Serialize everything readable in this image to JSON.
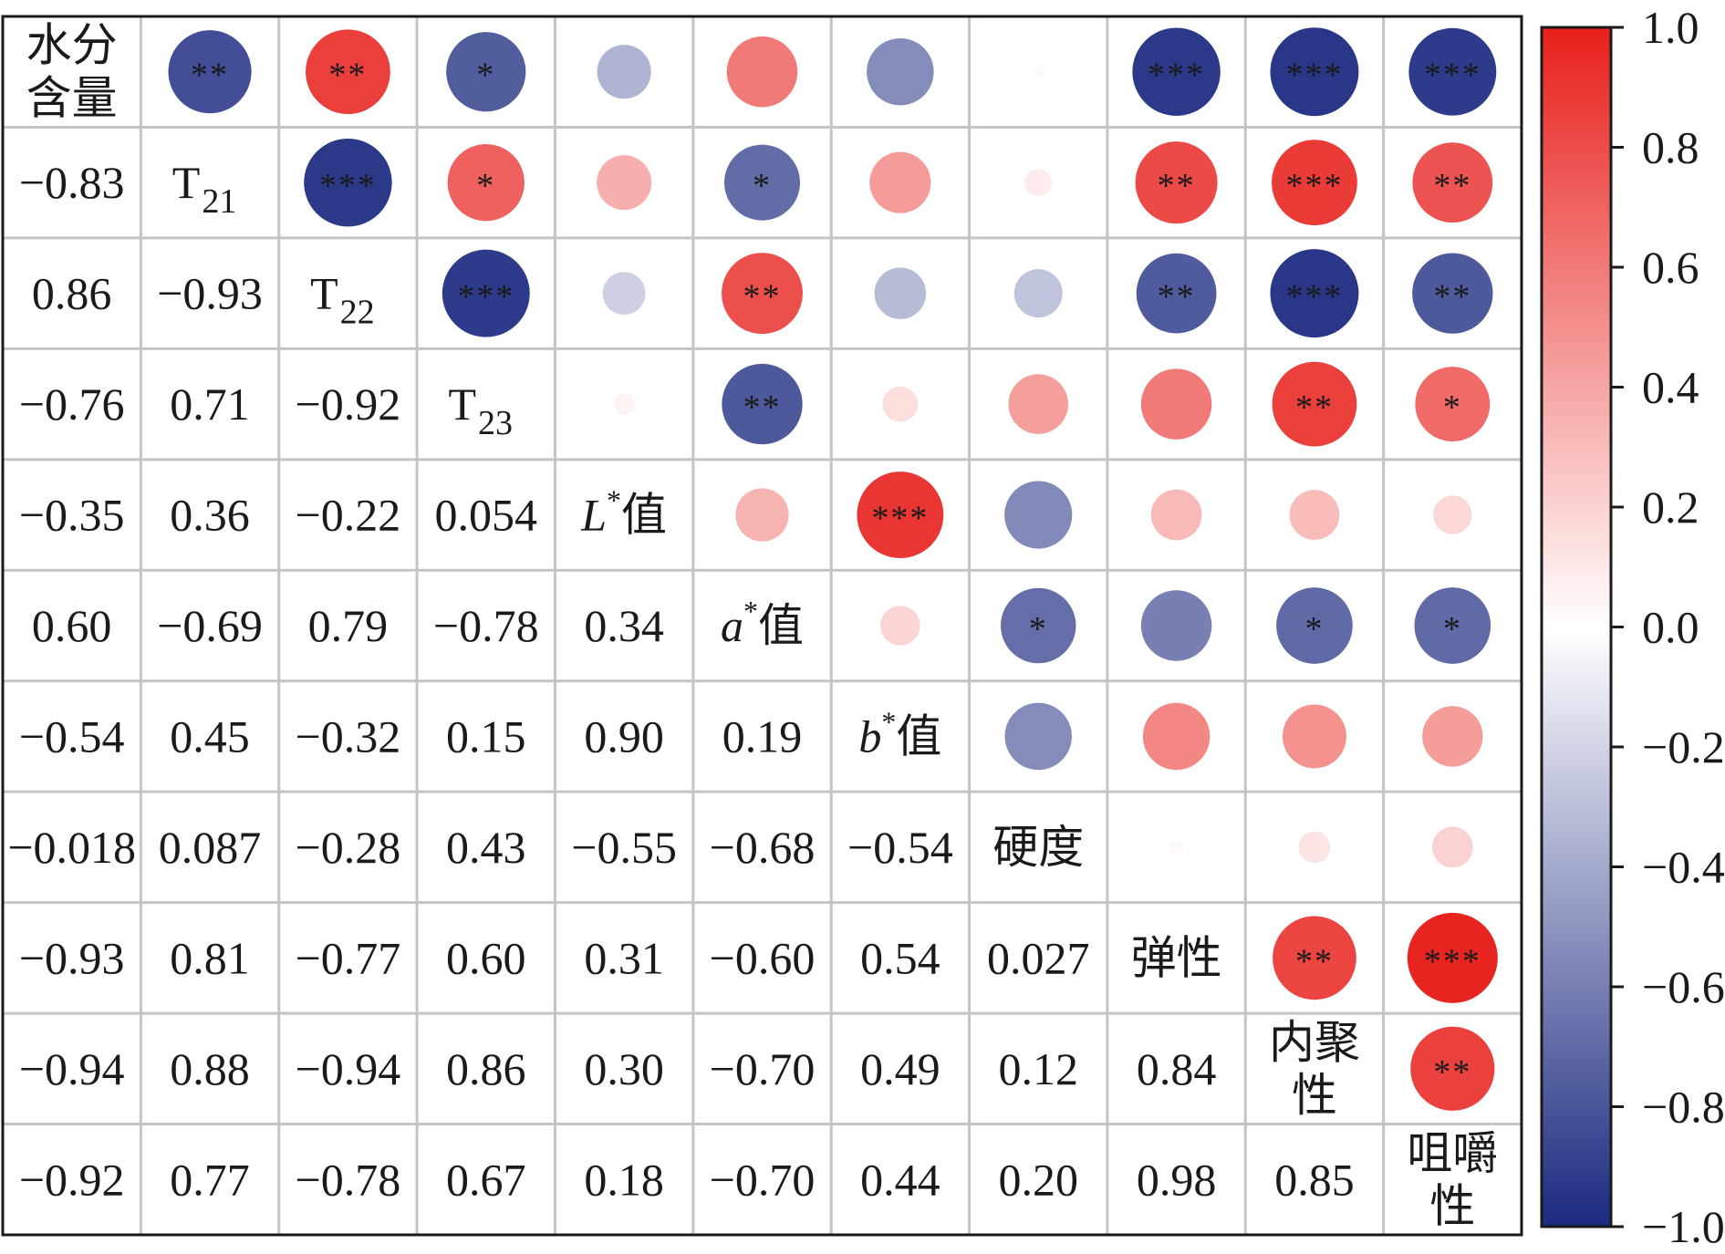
{
  "chart_data": {
    "type": "heatmap",
    "variables": [
      {
        "label": "水分含量",
        "lines": [
          "水分",
          "含量"
        ]
      },
      {
        "label": "T21",
        "base": "T",
        "sub": "21"
      },
      {
        "label": "T22",
        "base": "T",
        "sub": "22"
      },
      {
        "label": "T23",
        "base": "T",
        "sub": "23"
      },
      {
        "label": "L*值",
        "italic": "L",
        "sup": "*",
        "rest": "值"
      },
      {
        "label": "a*值",
        "italic": "a",
        "sup": "*",
        "rest": "值"
      },
      {
        "label": "b*值",
        "italic": "b",
        "sup": "*",
        "rest": "值"
      },
      {
        "label": "硬度",
        "lines": [
          "硬度"
        ]
      },
      {
        "label": "弹性",
        "lines": [
          "弹性"
        ]
      },
      {
        "label": "内聚性",
        "lines": [
          "内聚",
          "性"
        ]
      },
      {
        "label": "咀嚼性",
        "lines": [
          "咀嚼",
          "性"
        ]
      }
    ],
    "lower_triangle_text": [
      [],
      [
        "−0.83"
      ],
      [
        "0.86",
        "−0.93"
      ],
      [
        "−0.76",
        "0.71",
        "−0.92"
      ],
      [
        "−0.35",
        "0.36",
        "−0.22",
        "0.054"
      ],
      [
        "0.60",
        "−0.69",
        "0.79",
        "−0.78",
        "0.34"
      ],
      [
        "−0.54",
        "0.45",
        "−0.32",
        "0.15",
        "0.90",
        "0.19"
      ],
      [
        "−0.018",
        "0.087",
        "−0.28",
        "0.43",
        "−0.55",
        "−0.68",
        "−0.54"
      ],
      [
        "−0.93",
        "0.81",
        "−0.77",
        "0.60",
        "0.31",
        "−0.60",
        "0.54",
        "0.027"
      ],
      [
        "−0.94",
        "0.88",
        "−0.94",
        "0.86",
        "0.30",
        "−0.70",
        "0.49",
        "0.12",
        "0.84"
      ],
      [
        "−0.92",
        "0.77",
        "−0.78",
        "0.67",
        "0.18",
        "−0.70",
        "0.44",
        "0.20",
        "0.98",
        "0.85"
      ]
    ],
    "significance_upper": [
      [
        "",
        "**",
        "**",
        "*",
        "",
        "",
        "",
        "",
        "***",
        "***",
        "***"
      ],
      [
        "",
        "",
        "***",
        "*",
        "",
        "*",
        "",
        "",
        "**",
        "***",
        "**"
      ],
      [
        "",
        "",
        "",
        "***",
        "",
        "**",
        "",
        "",
        "**",
        "***",
        "**"
      ],
      [
        "",
        "",
        "",
        "",
        "",
        "**",
        "",
        "",
        "",
        "**",
        "*"
      ],
      [
        "",
        "",
        "",
        "",
        "",
        "",
        "***",
        "",
        "",
        "",
        ""
      ],
      [
        "",
        "",
        "",
        "",
        "",
        "",
        "",
        "*",
        "",
        "*",
        "*"
      ],
      [
        "",
        "",
        "",
        "",
        "",
        "",
        "",
        "",
        "",
        "",
        ""
      ],
      [
        "",
        "",
        "",
        "",
        "",
        "",
        "",
        "",
        "",
        "",
        ""
      ],
      [
        "",
        "",
        "",
        "",
        "",
        "",
        "",
        "",
        "",
        "**",
        "***"
      ],
      [
        "",
        "",
        "",
        "",
        "",
        "",
        "",
        "",
        "",
        "",
        "**"
      ],
      [
        "",
        "",
        "",
        "",
        "",
        "",
        "",
        "",
        "",
        "",
        ""
      ]
    ],
    "colorbar": {
      "range": [
        -1.0,
        1.0
      ],
      "ticks": [
        "1.0",
        "0.8",
        "0.6",
        "0.4",
        "0.2",
        "0.0",
        "−0.2",
        "−0.4",
        "−0.6",
        "−0.8",
        "−1.0"
      ],
      "tick_values": [
        1.0,
        0.8,
        0.6,
        0.4,
        0.2,
        0.0,
        -0.2,
        -0.4,
        -0.6,
        -0.8,
        -1.0
      ],
      "color_negative": "#1c2a80",
      "color_zero": "#ffffff",
      "color_positive": "#e8201c"
    },
    "grid_color": "#c4c4c4",
    "border_color": "#1a1a1a"
  }
}
